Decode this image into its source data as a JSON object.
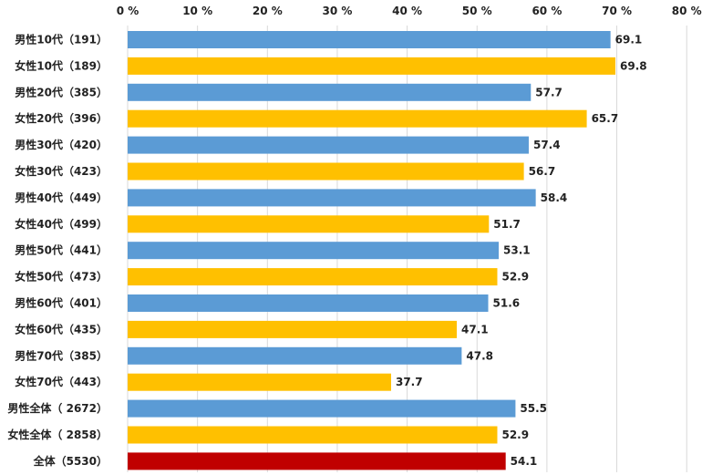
{
  "chart_data": {
    "type": "bar",
    "orientation": "horizontal",
    "categories": [
      "男性10代（191）",
      "女性10代（189）",
      "男性20代（385）",
      "女性20代（396）",
      "男性30代（420）",
      "女性30代（423）",
      "男性40代（449）",
      "女性40代（499）",
      "男性50代（441）",
      "女性50代（473）",
      "男性60代（401）",
      "女性60代（435）",
      "男性70代（385）",
      "女性70代（443）",
      "男性全体（ 2672）",
      "女性全体（ 2858）",
      "全体（5530）"
    ],
    "values": [
      69.1,
      69.8,
      57.7,
      65.7,
      57.4,
      56.7,
      58.4,
      51.7,
      53.1,
      52.9,
      51.6,
      47.1,
      47.8,
      37.7,
      55.5,
      52.9,
      54.1
    ],
    "value_labels": [
      "69.1",
      "69.8",
      "57.7",
      "65.7",
      "57.4",
      "56.7",
      "58.4",
      "51.7",
      "53.1",
      "52.9",
      "51.6",
      "47.1",
      "47.8",
      "37.7",
      "55.5",
      "52.9",
      "54.1"
    ],
    "bar_colors": [
      "#5B9BD5",
      "#FFC000",
      "#5B9BD5",
      "#FFC000",
      "#5B9BD5",
      "#FFC000",
      "#5B9BD5",
      "#FFC000",
      "#5B9BD5",
      "#FFC000",
      "#5B9BD5",
      "#FFC000",
      "#5B9BD5",
      "#FFC000",
      "#5B9BD5",
      "#FFC000",
      "#C00000"
    ],
    "xlim": [
      0,
      80
    ],
    "x_ticks": [
      "0 %",
      "10 %",
      "20 %",
      "30 %",
      "40 %",
      "50 %",
      "60 %",
      "70 %",
      "80 %"
    ],
    "x_axis_position": "top",
    "grid": true,
    "title": "",
    "xlabel": "",
    "ylabel": ""
  }
}
